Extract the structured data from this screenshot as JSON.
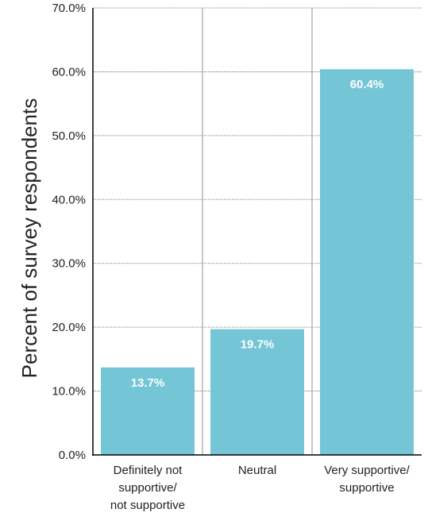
{
  "chart_data": {
    "type": "bar",
    "categories": [
      [
        "Definitely not",
        "supportive/",
        "not supportive"
      ],
      [
        "Neutral"
      ],
      [
        "Very supportive/",
        "supportive"
      ]
    ],
    "values": [
      13.7,
      19.7,
      60.4
    ],
    "data_labels": [
      "13.7%",
      "19.7%",
      "60.4%"
    ],
    "ylabel": "Percent of survey respondents",
    "xlabel": "",
    "title": "",
    "ylim": [
      0,
      70
    ],
    "yticks": [
      0,
      10,
      20,
      30,
      40,
      50,
      60,
      70
    ],
    "ytick_labels": [
      "0.0%",
      "10.0%",
      "20.0%",
      "30.0%",
      "40.0%",
      "50.0%",
      "60.0%",
      "70.0%"
    ],
    "grid": true,
    "bar_color": "#74c5d5",
    "grid_color": "#777777",
    "axis_color": "#000000"
  }
}
